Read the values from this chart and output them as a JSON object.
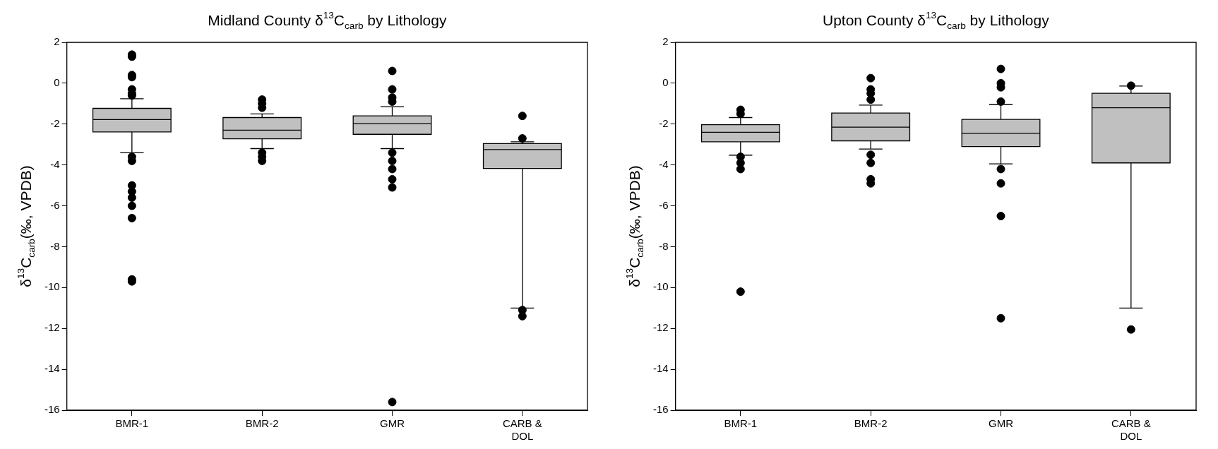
{
  "chart_data": [
    {
      "type": "box",
      "title": "Midland County δ$^{13}$C$_{carb}$ by Lithology",
      "ylabel": "δ$^{13}$C$_{carb}$(‰, VPDB)",
      "categories": [
        "BMR-1",
        "BMR-2",
        "GMR",
        "CARB & DOL"
      ],
      "ylim": [
        -16,
        2
      ],
      "yticks": [
        -16,
        -14,
        -12,
        -10,
        -8,
        -6,
        -4,
        -2,
        0,
        2
      ],
      "grid": false,
      "legend": false,
      "marker": "circle",
      "series": [
        {
          "color": "#c0c0c0",
          "boxes": [
            {
              "low": -3.4,
              "q1": -2.38,
              "median": -1.78,
              "q3": -1.23,
              "high": -0.76,
              "outliers": [
                1.4,
                1.3,
                0.4,
                0.3,
                -0.3,
                -0.5,
                -0.6,
                -3.6,
                -3.8,
                -5.0,
                -5.3,
                -5.6,
                -6.0,
                -6.6,
                -9.6,
                -9.7
              ]
            },
            {
              "low": -3.2,
              "q1": -2.72,
              "median": -2.3,
              "q3": -1.68,
              "high": -1.5,
              "outliers": [
                -0.8,
                -1.0,
                -1.2,
                -3.4,
                -3.6,
                -3.8
              ]
            },
            {
              "low": -3.2,
              "q1": -2.5,
              "median": -1.98,
              "q3": -1.6,
              "high": -1.15,
              "outliers": [
                0.6,
                -0.3,
                -0.7,
                -0.9,
                -3.4,
                -3.8,
                -4.2,
                -4.7,
                -5.1,
                -15.6
              ]
            },
            {
              "low": -11.0,
              "q1": -4.17,
              "median": -3.25,
              "q3": -2.95,
              "high": -2.87,
              "outliers": [
                -1.6,
                -2.7,
                -11.1,
                -11.4
              ]
            }
          ]
        }
      ]
    },
    {
      "type": "box",
      "title": "Upton County δ$^{13}$C$_{carb}$ by Lithology",
      "ylabel": "δ$^{13}$C$_{carb}$(‰, VPDB)",
      "categories": [
        "BMR-1",
        "BMR-2",
        "GMR",
        "CARB & DOL"
      ],
      "ylim": [
        -16,
        2
      ],
      "yticks": [
        -16,
        -14,
        -12,
        -10,
        -8,
        -6,
        -4,
        -2,
        0,
        2
      ],
      "grid": false,
      "legend": false,
      "marker": "circle",
      "series": [
        {
          "color": "#c0c0c0",
          "boxes": [
            {
              "low": -3.52,
              "q1": -2.87,
              "median": -2.4,
              "q3": -2.03,
              "high": -1.68,
              "outliers": [
                -1.3,
                -1.5,
                -3.6,
                -3.9,
                -4.2,
                -10.2
              ]
            },
            {
              "low": -3.22,
              "q1": -2.82,
              "median": -2.15,
              "q3": -1.46,
              "high": -1.07,
              "outliers": [
                0.25,
                -0.3,
                -0.5,
                -0.8,
                -3.5,
                -3.9,
                -4.7,
                -4.9
              ]
            },
            {
              "low": -3.95,
              "q1": -3.1,
              "median": -2.45,
              "q3": -1.77,
              "high": -1.04,
              "outliers": [
                0.7,
                0,
                -0.2,
                -0.9,
                -4.2,
                -4.9,
                -6.5,
                -11.5
              ]
            },
            {
              "low": -11.0,
              "q1": -3.9,
              "median": -1.2,
              "q3": -0.49,
              "high": -0.14,
              "outliers": [
                -0.12,
                -12.05
              ]
            }
          ]
        }
      ]
    }
  ]
}
